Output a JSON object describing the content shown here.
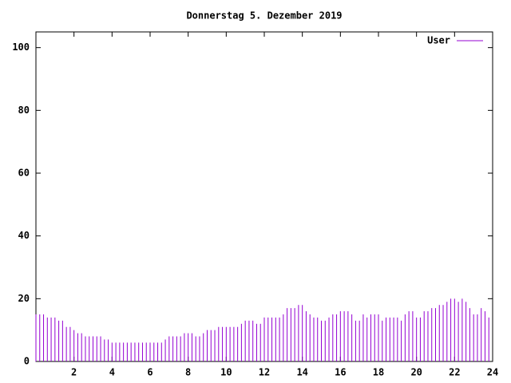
{
  "chart_data": {
    "type": "impulse",
    "title": "Donnerstag 5. Dezember 2019",
    "series": [
      {
        "name": "User",
        "color": "#9400d3",
        "x": [
          0,
          0.2,
          0.4,
          0.6,
          0.8,
          1,
          1.2,
          1.4,
          1.6,
          1.8,
          2,
          2.2,
          2.4,
          2.6,
          2.8,
          3,
          3.2,
          3.4,
          3.6,
          3.8,
          4,
          4.2,
          4.4,
          4.6,
          4.8,
          5,
          5.2,
          5.4,
          5.6,
          5.8,
          6,
          6.2,
          6.4,
          6.6,
          6.8,
          7,
          7.2,
          7.4,
          7.6,
          7.8,
          8,
          8.2,
          8.4,
          8.6,
          8.8,
          9,
          9.2,
          9.4,
          9.6,
          9.8,
          10,
          10.2,
          10.4,
          10.6,
          10.8,
          11,
          11.2,
          11.4,
          11.6,
          11.8,
          12,
          12.2,
          12.4,
          12.6,
          12.8,
          13,
          13.2,
          13.4,
          13.6,
          13.8,
          14,
          14.2,
          14.4,
          14.6,
          14.8,
          15,
          15.2,
          15.4,
          15.6,
          15.8,
          16,
          16.2,
          16.4,
          16.6,
          16.8,
          17,
          17.2,
          17.4,
          17.6,
          17.8,
          18,
          18.2,
          18.4,
          18.6,
          18.8,
          19,
          19.2,
          19.4,
          19.6,
          19.8,
          20,
          20.2,
          20.4,
          20.6,
          20.8,
          21,
          21.2,
          21.4,
          21.6,
          21.8,
          22,
          22.2,
          22.4,
          22.6,
          22.8,
          23,
          23.2,
          23.4,
          23.6,
          23.8
        ],
        "values": [
          15,
          15,
          15,
          14,
          14,
          14,
          13,
          13,
          11,
          11,
          10,
          9,
          9,
          8,
          8,
          8,
          8,
          8,
          7,
          7,
          6,
          6,
          6,
          6,
          6,
          6,
          6,
          6,
          6,
          6,
          6,
          6,
          6,
          6,
          7,
          8,
          8,
          8,
          8,
          9,
          9,
          9,
          8,
          8,
          9,
          10,
          10,
          10,
          11,
          11,
          11,
          11,
          11,
          11,
          12,
          13,
          13,
          13,
          12,
          12,
          14,
          14,
          14,
          14,
          14,
          15,
          17,
          17,
          17,
          18,
          18,
          16,
          15,
          14,
          14,
          13,
          13,
          14,
          15,
          15,
          16,
          16,
          16,
          15,
          13,
          13,
          15,
          14,
          15,
          15,
          15,
          13,
          14,
          14,
          14,
          14,
          13,
          15,
          16,
          16,
          14,
          14,
          16,
          16,
          17,
          17,
          18,
          18,
          19,
          20,
          20,
          19,
          20,
          19,
          17,
          15,
          15,
          17,
          16,
          14
        ]
      }
    ],
    "xlim": [
      0,
      24
    ],
    "xticks": [
      2,
      4,
      6,
      8,
      10,
      12,
      14,
      16,
      18,
      20,
      22,
      24
    ],
    "ylim": [
      0,
      105
    ],
    "yticks": [
      0,
      20,
      40,
      60,
      80,
      100
    ],
    "legend": "top-right"
  }
}
